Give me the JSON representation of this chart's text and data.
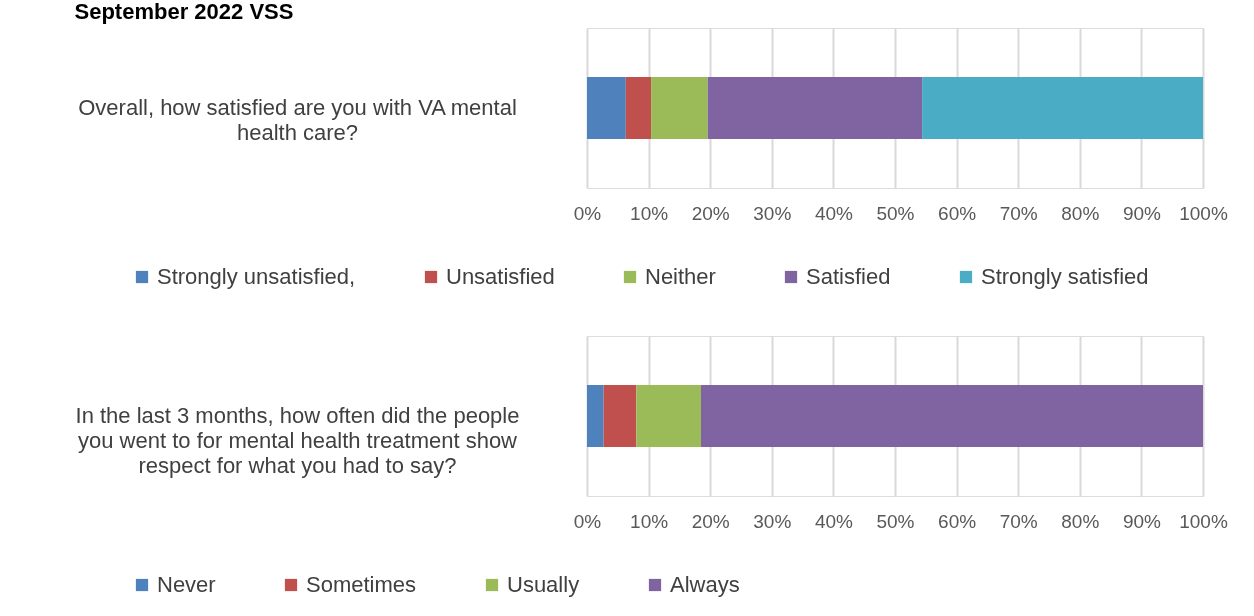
{
  "chart_data": [
    {
      "type": "bar",
      "orientation": "horizontal",
      "stacked": true,
      "title": "September 2022 VSS",
      "legend": "bottom",
      "grid": "x",
      "categories": [
        "Overall, how satisfied are you with VA mental health care?"
      ],
      "xlim": [
        0,
        100
      ],
      "xticks": [
        {
          "value": 0,
          "label": "0%"
        },
        {
          "value": 10,
          "label": "10%"
        },
        {
          "value": 20,
          "label": "20%"
        },
        {
          "value": 30,
          "label": "30%"
        },
        {
          "value": 40,
          "label": "40%"
        },
        {
          "value": 50,
          "label": "50%"
        },
        {
          "value": 60,
          "label": "60%"
        },
        {
          "value": 70,
          "label": "70%"
        },
        {
          "value": 80,
          "label": "80%"
        },
        {
          "value": 90,
          "label": "90%"
        },
        {
          "value": 100,
          "label": "100%"
        }
      ],
      "series": [
        {
          "name": "Strongly unsatisfied,",
          "color": "#4f81bd",
          "values": [
            6.3
          ]
        },
        {
          "name": "Unsatisfied",
          "color": "#c0504d",
          "values": [
            4.1
          ]
        },
        {
          "name": "Neither",
          "color": "#9bbb59",
          "values": [
            9.2
          ]
        },
        {
          "name": "Satisfied",
          "color": "#8064a2",
          "values": [
            34.8
          ]
        },
        {
          "name": "Strongly satisfied",
          "color": "#4bacc6",
          "values": [
            45.6
          ]
        }
      ]
    },
    {
      "type": "bar",
      "orientation": "horizontal",
      "stacked": true,
      "legend": "bottom",
      "grid": "x",
      "categories": [
        "In the last 3 months, how often did the people you went to for mental health treatment show respect for what you had to say?"
      ],
      "xlim": [
        0,
        100
      ],
      "xticks": [
        {
          "value": 0,
          "label": "0%"
        },
        {
          "value": 10,
          "label": "10%"
        },
        {
          "value": 20,
          "label": "20%"
        },
        {
          "value": 30,
          "label": "30%"
        },
        {
          "value": 40,
          "label": "40%"
        },
        {
          "value": 50,
          "label": "50%"
        },
        {
          "value": 60,
          "label": "60%"
        },
        {
          "value": 70,
          "label": "70%"
        },
        {
          "value": 80,
          "label": "80%"
        },
        {
          "value": 90,
          "label": "90%"
        },
        {
          "value": 100,
          "label": "100%"
        }
      ],
      "series": [
        {
          "name": "Never",
          "color": "#4f81bd",
          "values": [
            2.7
          ]
        },
        {
          "name": "Sometimes",
          "color": "#c0504d",
          "values": [
            5.3
          ]
        },
        {
          "name": "Usually",
          "color": "#9bbb59",
          "values": [
            10.5
          ]
        },
        {
          "name": "Always",
          "color": "#8064a2",
          "values": [
            81.5
          ]
        }
      ]
    }
  ]
}
